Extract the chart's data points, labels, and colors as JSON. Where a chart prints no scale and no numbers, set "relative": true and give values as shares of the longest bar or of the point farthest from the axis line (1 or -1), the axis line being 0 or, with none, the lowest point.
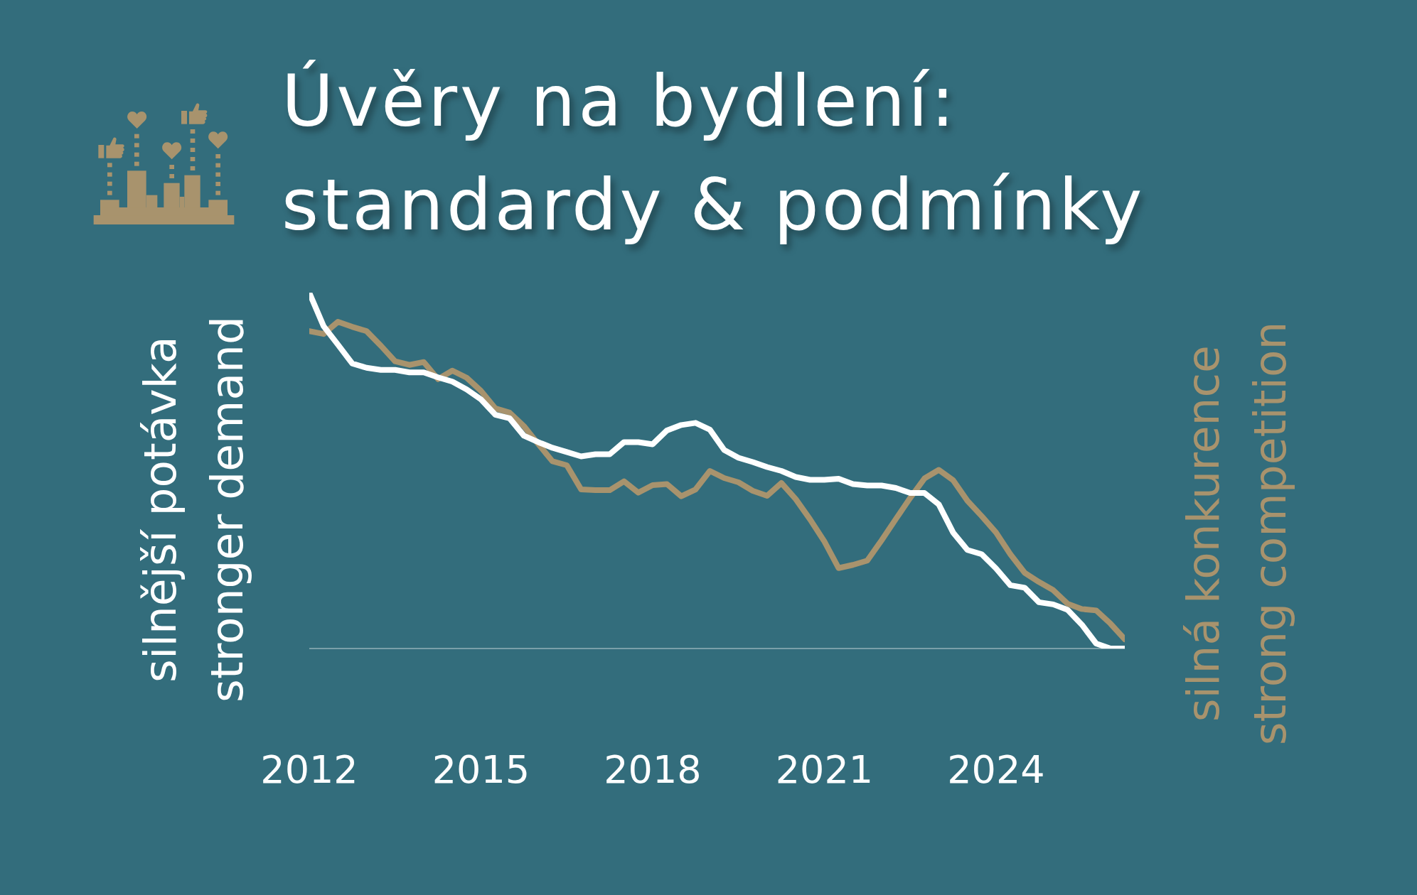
{
  "chart_data": {
    "type": "line",
    "title": "Úvěry na bydlení:\nstandardy & podmínky",
    "ylabel": "silnější potávka\nstronger demand",
    "y2label": "silná konkurence\nstrong competition",
    "relative": true,
    "x": [
      2012,
      2012.25,
      2012.5,
      2012.75,
      2013,
      2013.25,
      2013.5,
      2013.75,
      2014,
      2014.25,
      2014.5,
      2014.75,
      2015,
      2015.25,
      2015.5,
      2015.75,
      2016,
      2016.25,
      2016.5,
      2016.75,
      2017,
      2017.25,
      2017.5,
      2017.75,
      2018,
      2018.25,
      2018.5,
      2018.75,
      2019,
      2019.25,
      2019.5,
      2019.75,
      2020,
      2020.25,
      2020.5,
      2020.75,
      2021,
      2021.25,
      2021.5,
      2021.75,
      2022,
      2022.25,
      2022.5,
      2022.75,
      2023,
      2023.25,
      2023.5,
      2023.75,
      2024,
      2024.25,
      2024.5,
      2024.75,
      2025,
      2025.25,
      2025.5,
      2025.75,
      2026,
      2026.25
    ],
    "xlim": [
      2012,
      2026.25
    ],
    "xticks": [
      2012,
      2015,
      2018,
      2021,
      2024
    ],
    "series": [
      {
        "color": "#ffffff",
        "values": [
          1.0,
          0.906,
          0.854,
          0.801,
          0.789,
          0.783,
          0.783,
          0.776,
          0.776,
          0.762,
          0.75,
          0.728,
          0.7,
          0.657,
          0.647,
          0.598,
          0.58,
          0.564,
          0.552,
          0.54,
          0.546,
          0.546,
          0.58,
          0.58,
          0.574,
          0.613,
          0.628,
          0.634,
          0.615,
          0.558,
          0.536,
          0.524,
          0.51,
          0.499,
          0.482,
          0.474,
          0.474,
          0.477,
          0.462,
          0.458,
          0.458,
          0.451,
          0.437,
          0.437,
          0.405,
          0.326,
          0.277,
          0.265,
          0.225,
          0.178,
          0.171,
          0.13,
          0.124,
          0.109,
          0.067,
          0.014,
          0,
          0
        ]
      },
      {
        "color": "#a8936d",
        "values": [
          0.892,
          0.884,
          0.918,
          0.904,
          0.892,
          0.851,
          0.807,
          0.797,
          0.805,
          0.757,
          0.781,
          0.761,
          0.724,
          0.675,
          0.663,
          0.625,
          0.575,
          0.526,
          0.515,
          0.447,
          0.445,
          0.445,
          0.47,
          0.438,
          0.459,
          0.462,
          0.428,
          0.447,
          0.499,
          0.479,
          0.467,
          0.443,
          0.429,
          0.465,
          0.42,
          0.363,
          0.301,
          0.226,
          0.235,
          0.247,
          0.304,
          0.364,
          0.423,
          0.478,
          0.502,
          0.473,
          0.415,
          0.372,
          0.326,
          0.265,
          0.213,
          0.187,
          0.164,
          0.126,
          0.111,
          0.107,
          0.07,
          0.026
        ]
      }
    ]
  }
}
